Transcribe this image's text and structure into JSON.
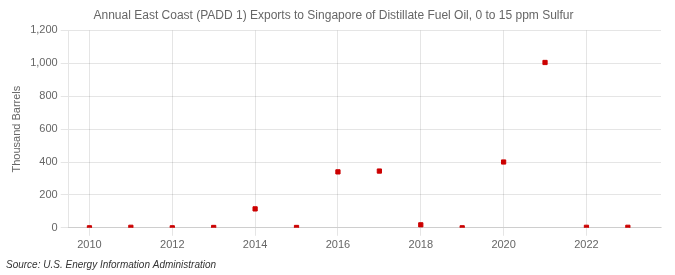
{
  "chart_data": {
    "type": "scatter",
    "title": "Annual East Coast (PADD 1) Exports to Singapore of Distillate Fuel Oil, 0 to 15 ppm Sulfur",
    "ylabel": "Thousand Barrels",
    "annotations": [
      "Source: U.S. Energy Information Administration"
    ],
    "x": [
      2010,
      2011,
      2012,
      2013,
      2014,
      2015,
      2016,
      2017,
      2018,
      2019,
      2020,
      2021,
      2022,
      2023
    ],
    "values": [
      0,
      3,
      0,
      2,
      115,
      2,
      340,
      345,
      18,
      0,
      400,
      1005,
      3,
      3
    ],
    "color": "#cc0000",
    "marker": "square",
    "xlim": [
      2009.5,
      2023.8
    ],
    "xticks": [
      2010,
      2012,
      2014,
      2016,
      2018,
      2020,
      2022
    ],
    "ylim": [
      0,
      1200
    ],
    "yticks": [
      0,
      200,
      400,
      600,
      800,
      {
        "value": 1000,
        "label": "1,000"
      },
      {
        "value": 1200,
        "label": "1,200"
      }
    ],
    "grid": true
  }
}
